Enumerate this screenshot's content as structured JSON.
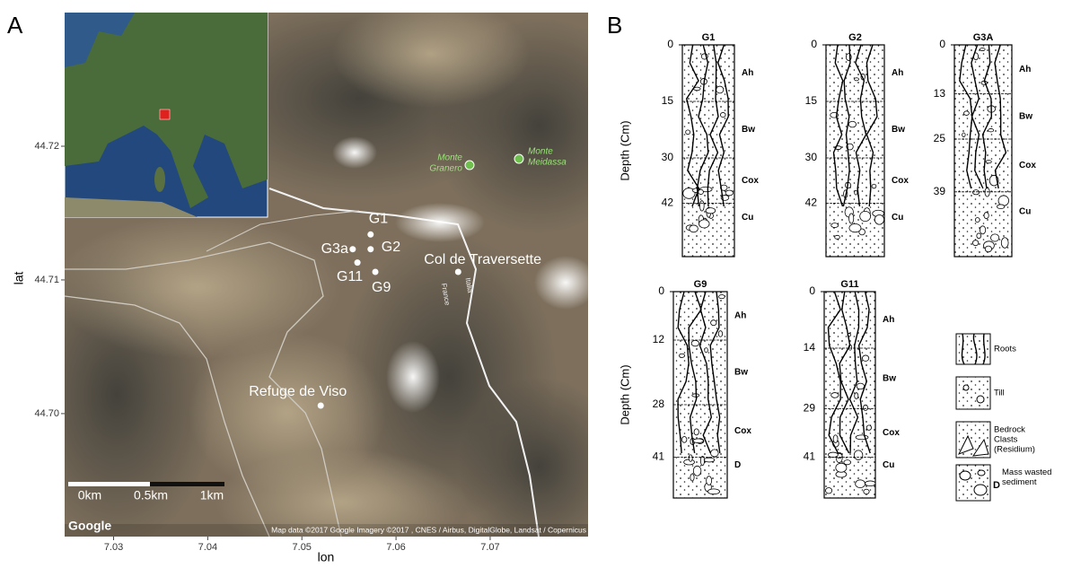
{
  "panel_a": {
    "label": "A",
    "x_label": "lon",
    "y_label": "lat",
    "xlim": [
      7.0248,
      7.0804
    ],
    "ylim": [
      44.6908,
      44.73
    ],
    "xticks": [
      7.03,
      7.04,
      7.05,
      7.06,
      7.07
    ],
    "yticks": [
      {
        "value": 44.7,
        "label": "44.70"
      },
      {
        "value": 44.71,
        "label": "44.71"
      },
      {
        "value": 44.72,
        "label": "44.72"
      }
    ],
    "sites": [
      {
        "name": "G1",
        "lon": 7.0573,
        "lat": 44.7134
      },
      {
        "name": "G3a",
        "lon": 7.0554,
        "lat": 44.7123
      },
      {
        "name": "G2",
        "lon": 7.0573,
        "lat": 44.7123
      },
      {
        "name": "G11",
        "lon": 7.0559,
        "lat": 44.7113
      },
      {
        "name": "G9",
        "lon": 7.0578,
        "lat": 44.7106
      },
      {
        "name": "Col de Traversette",
        "lon": 7.0666,
        "lat": 44.7106
      },
      {
        "name": "Refuge de Viso",
        "lon": 7.052,
        "lat": 44.7006
      }
    ],
    "peaks": [
      [
        "Monte",
        "Granero"
      ],
      [
        "Monte",
        "Meidassa"
      ]
    ],
    "border_labels": [
      "France",
      "Italia"
    ],
    "scale_labels": [
      "0km",
      "0.5km",
      "1km"
    ],
    "logo": "Google",
    "attribution": "Map data ©2017 Google  Imagery ©2017 , CNES / Airbus, DigitalGlobe, Landsat / Copernicus"
  },
  "panel_b": {
    "label": "B",
    "rows": [
      {
        "depth_label": "Depth (Cm)",
        "profiles": [
          {
            "name": "G1",
            "depths": [
              0,
              15,
              30,
              42
            ],
            "horizons": [
              "Ah",
              "Bw",
              "Cox",
              "Cu"
            ]
          },
          {
            "name": "G2",
            "depths": [
              0,
              15,
              30,
              42
            ],
            "horizons": [
              "Ah",
              "Bw",
              "Cox",
              "Cu"
            ]
          },
          {
            "name": "G3A",
            "depths": [
              0,
              13,
              25,
              39
            ],
            "horizons": [
              "Ah",
              "Bw",
              "Cox",
              "Cu"
            ]
          }
        ]
      },
      {
        "depth_label": "Depth (Cm)",
        "profiles": [
          {
            "name": "G9",
            "depths": [
              0,
              12,
              28,
              41
            ],
            "horizons": [
              "Ah",
              "Bw",
              "Cox",
              "D"
            ]
          },
          {
            "name": "G11",
            "depths": [
              0,
              14,
              29,
              41
            ],
            "horizons": [
              "Ah",
              "Bw",
              "Cox",
              "Cu"
            ]
          }
        ]
      }
    ],
    "legend": [
      {
        "lines": [
          "Roots"
        ]
      },
      {
        "lines": [
          "Till"
        ]
      },
      {
        "lines": [
          "Bedrock",
          "Clasts",
          "(Residium)"
        ]
      },
      {
        "code": "D",
        "lines": [
          "Mass wasted",
          "sediment"
        ]
      }
    ]
  }
}
